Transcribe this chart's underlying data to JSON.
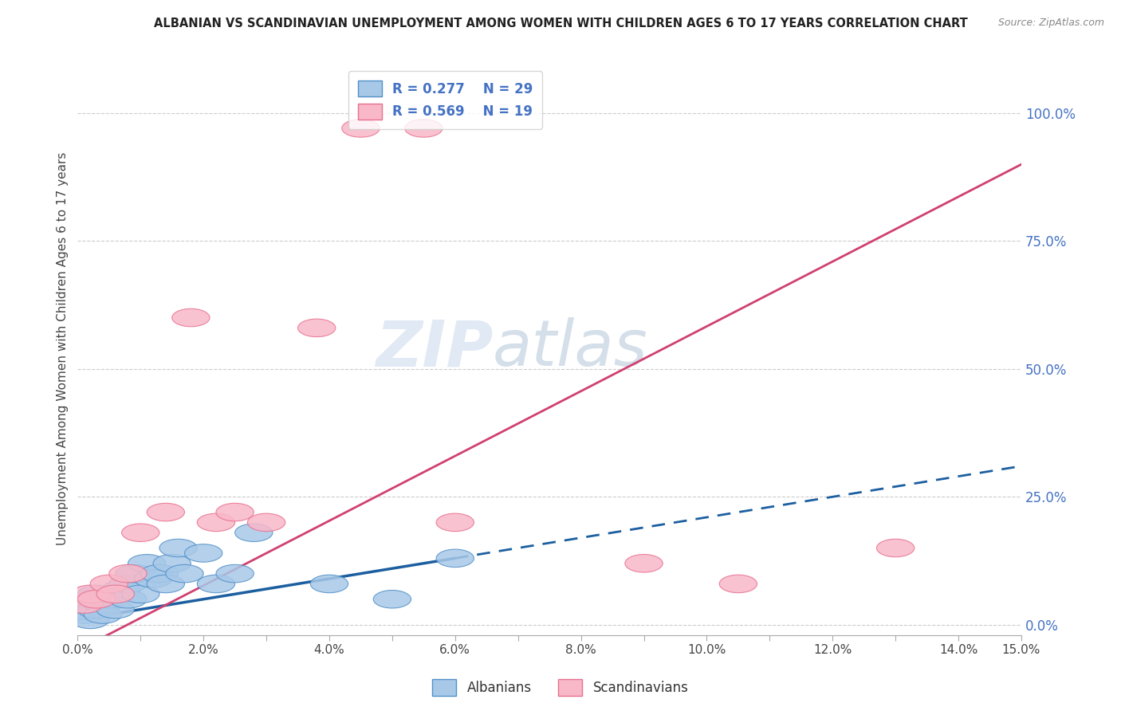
{
  "title": "ALBANIAN VS SCANDINAVIAN UNEMPLOYMENT AMONG WOMEN WITH CHILDREN AGES 6 TO 17 YEARS CORRELATION CHART",
  "source": "Source: ZipAtlas.com",
  "ylabel": "Unemployment Among Women with Children Ages 6 to 17 years",
  "xlim": [
    0.0,
    0.15
  ],
  "ylim": [
    -0.02,
    1.1
  ],
  "x_tick_positions": [
    0.0,
    0.01,
    0.02,
    0.03,
    0.04,
    0.05,
    0.06,
    0.07,
    0.08,
    0.09,
    0.1,
    0.11,
    0.12,
    0.13,
    0.14,
    0.15
  ],
  "x_tick_labels": [
    "0.0%",
    "",
    "2.0%",
    "",
    "4.0%",
    "",
    "6.0%",
    "",
    "8.0%",
    "",
    "10.0%",
    "",
    "12.0%",
    "",
    "14.0%",
    "15.0%"
  ],
  "y_ticks_right": [
    0.0,
    0.25,
    0.5,
    0.75,
    1.0
  ],
  "y_tick_labels_right": [
    "0.0%",
    "25.0%",
    "50.0%",
    "75.0%",
    "100.0%"
  ],
  "legend_R1": "R = 0.277",
  "legend_N1": "N = 29",
  "legend_R2": "R = 0.569",
  "legend_N2": "N = 19",
  "color_albanian_fill": "#A8C8E8",
  "color_albanian_edge": "#5090C8",
  "color_albanian_line": "#1C5FA0",
  "color_scandinavian_fill": "#F8B8C8",
  "color_scandinavian_edge": "#E87090",
  "color_scandinavian_line": "#D04070",
  "watermark_text": "ZIPatlas",
  "albanian_x": [
    0.001,
    0.001,
    0.002,
    0.002,
    0.003,
    0.003,
    0.004,
    0.004,
    0.005,
    0.006,
    0.007,
    0.008,
    0.008,
    0.009,
    0.01,
    0.011,
    0.012,
    0.013,
    0.014,
    0.015,
    0.016,
    0.017,
    0.02,
    0.022,
    0.025,
    0.028,
    0.04,
    0.05,
    0.06
  ],
  "albanian_y": [
    0.02,
    0.04,
    0.01,
    0.05,
    0.03,
    0.06,
    0.04,
    0.02,
    0.05,
    0.03,
    0.07,
    0.05,
    0.08,
    0.1,
    0.06,
    0.12,
    0.09,
    0.1,
    0.08,
    0.12,
    0.15,
    0.1,
    0.14,
    0.08,
    0.1,
    0.18,
    0.08,
    0.05,
    0.13
  ],
  "scandinavian_x": [
    0.001,
    0.002,
    0.003,
    0.005,
    0.006,
    0.008,
    0.01,
    0.014,
    0.018,
    0.022,
    0.025,
    0.03,
    0.038,
    0.045,
    0.055,
    0.06,
    0.09,
    0.105,
    0.13
  ],
  "scandinavian_y": [
    0.04,
    0.06,
    0.05,
    0.08,
    0.06,
    0.1,
    0.18,
    0.22,
    0.6,
    0.2,
    0.22,
    0.2,
    0.58,
    0.97,
    0.97,
    0.2,
    0.12,
    0.08,
    0.15
  ],
  "alb_line_x0": 0.0,
  "alb_line_x_solid_end": 0.06,
  "alb_line_x_dash_end": 0.15,
  "scan_line_x0": 0.0,
  "scan_line_x_end": 0.15
}
